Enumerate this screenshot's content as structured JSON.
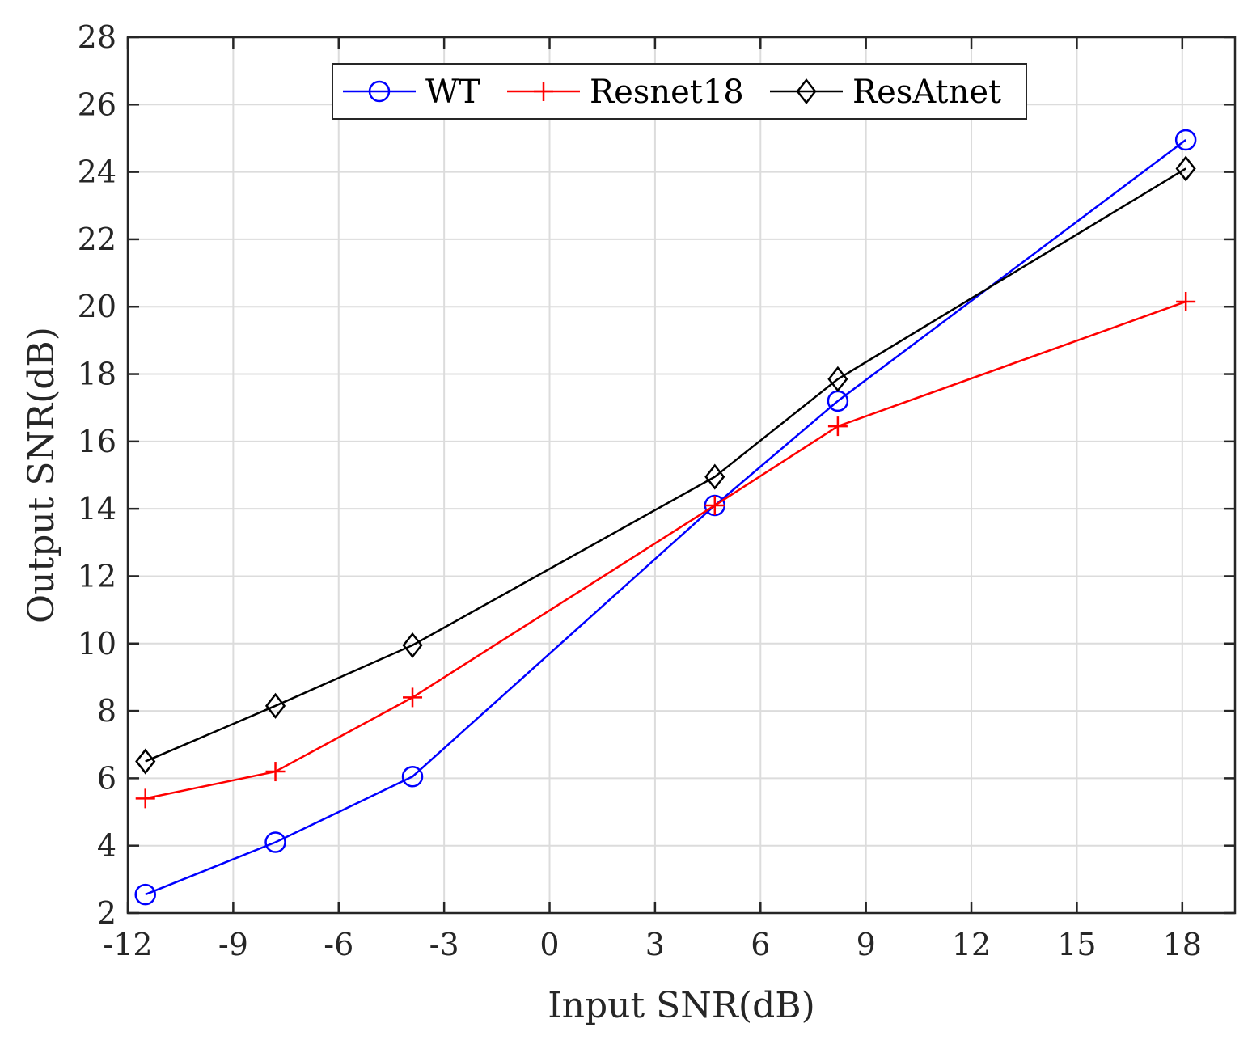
{
  "chart_data": {
    "type": "line",
    "title": "",
    "xlabel": "Input SNR(dB)",
    "ylabel": "Output SNR(dB)",
    "xlim": [
      -12,
      19.5
    ],
    "ylim": [
      2,
      28
    ],
    "xticks": [
      -12,
      -9,
      -6,
      -3,
      0,
      3,
      6,
      9,
      12,
      15,
      18
    ],
    "yticks": [
      2,
      4,
      6,
      8,
      10,
      12,
      14,
      16,
      18,
      20,
      22,
      24,
      26,
      28
    ],
    "grid": true,
    "legend_position": "top-center",
    "series": [
      {
        "name": "WT",
        "color": "#0000ff",
        "marker": "circle",
        "x": [
          -11.5,
          -7.8,
          -3.9,
          4.7,
          8.2,
          18.1
        ],
        "y": [
          2.55,
          4.1,
          6.05,
          14.1,
          17.2,
          24.95
        ]
      },
      {
        "name": "Resnet18",
        "color": "#ff0000",
        "marker": "plus",
        "x": [
          -11.5,
          -7.8,
          -3.9,
          4.7,
          8.2,
          18.1
        ],
        "y": [
          5.4,
          6.2,
          8.4,
          14.1,
          16.45,
          20.15
        ]
      },
      {
        "name": "ResAtnet",
        "color": "#000000",
        "marker": "diamond",
        "x": [
          -11.5,
          -7.8,
          -3.9,
          4.7,
          8.2,
          18.1
        ],
        "y": [
          6.5,
          8.15,
          9.95,
          14.95,
          17.85,
          24.1
        ]
      }
    ]
  }
}
